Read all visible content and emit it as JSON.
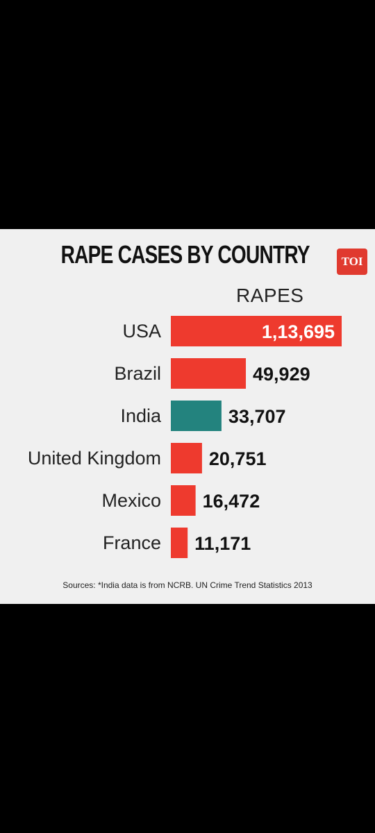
{
  "header": {
    "title": "RAPE CASES BY COUNTRY",
    "logo_text": "TOI"
  },
  "footer": {
    "sources": "Sources: *India data is from NCRB. UN Crime Trend Statistics 2013"
  },
  "colors": {
    "default_bar": "#ee3a2e",
    "highlight_bar": "#23837e",
    "card_background": "#f0f0f0"
  },
  "chart_data": {
    "type": "bar",
    "orientation": "horizontal",
    "title": "RAPE CASES BY COUNTRY",
    "value_header": "RAPES",
    "categories": [
      "USA",
      "Brazil",
      "India",
      "United Kingdom",
      "Mexico",
      "France"
    ],
    "values": [
      113695,
      49929,
      33707,
      20751,
      16472,
      11171
    ],
    "value_labels": [
      "1,13,695",
      "49,929",
      "33,707",
      "20,751",
      "16,472",
      "11,171"
    ],
    "highlight": "India",
    "grid": false,
    "legend": "none"
  }
}
